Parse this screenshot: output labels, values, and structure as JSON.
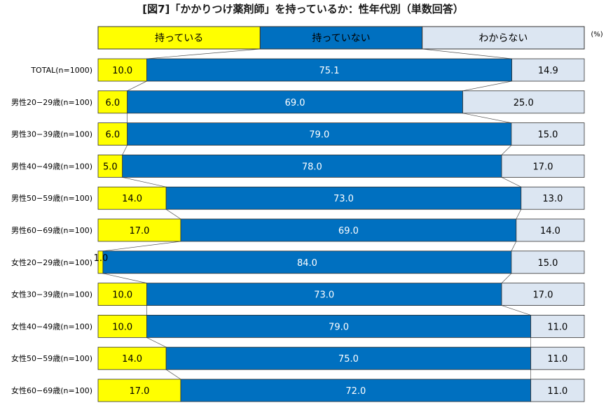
{
  "chart_data": {
    "type": "bar",
    "orientation": "horizontal",
    "stacked": "100%",
    "title": "[図7]「かかりつけ薬剤師」を持っているか：性年代別（単数回答）",
    "unit_label": "(%)",
    "legend_position": "top",
    "grid": false,
    "xlim": [
      0,
      100
    ],
    "categories": [
      "TOTAL(n=1000)",
      "男性20−29歳(n=100)",
      "男性30−39歳(n=100)",
      "男性40−49歳(n=100)",
      "男性50−59歳(n=100)",
      "男性60−69歳(n=100)",
      "女性20−29歳(n=100)",
      "女性30−39歳(n=100)",
      "女性40−49歳(n=100)",
      "女性50−59歳(n=100)",
      "女性60−69歳(n=100)"
    ],
    "series": [
      {
        "name": "持っている",
        "color": "#ffff00",
        "label_color": "#000000",
        "values": [
          10.0,
          6.0,
          6.0,
          5.0,
          14.0,
          17.0,
          1.0,
          10.0,
          10.0,
          14.0,
          17.0
        ],
        "labels": [
          "10.0",
          "6.0",
          "6.0",
          "5.0",
          "14.0",
          "17.0",
          "1.0",
          "10.0",
          "10.0",
          "14.0",
          "17.0"
        ]
      },
      {
        "name": "持っていない",
        "color": "#0070c0",
        "label_color": "#ffffff",
        "values": [
          75.1,
          69.0,
          79.0,
          78.0,
          73.0,
          69.0,
          84.0,
          73.0,
          79.0,
          75.0,
          72.0
        ],
        "labels": [
          "75.1",
          "69.0",
          "79.0",
          "78.0",
          "73.0",
          "69.0",
          "84.0",
          "73.0",
          "79.0",
          "75.0",
          "72.0"
        ]
      },
      {
        "name": "わからない",
        "color": "#dce6f2",
        "label_color": "#000000",
        "values": [
          14.9,
          25.0,
          15.0,
          17.0,
          13.0,
          14.0,
          15.0,
          17.0,
          11.0,
          11.0,
          11.0
        ],
        "labels": [
          "14.9",
          "25.0",
          "15.0",
          "17.0",
          "13.0",
          "14.0",
          "15.0",
          "17.0",
          "11.0",
          "11.0",
          "11.0"
        ]
      }
    ]
  }
}
